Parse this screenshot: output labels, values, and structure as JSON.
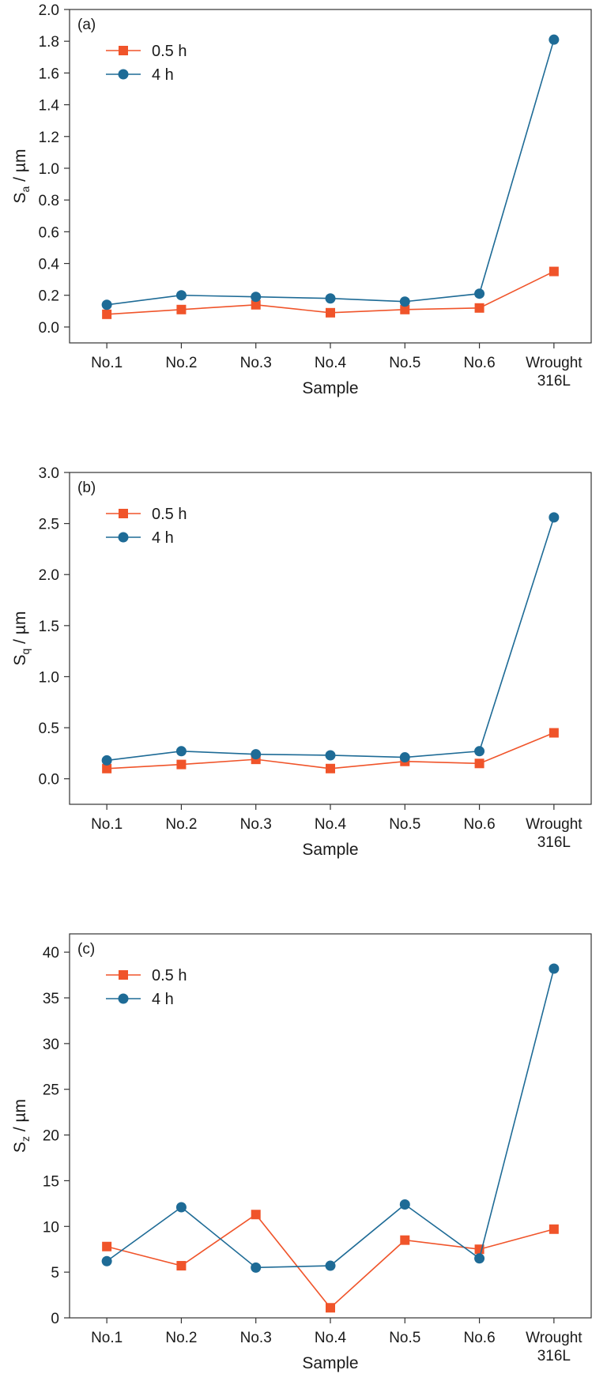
{
  "chart_data": [
    {
      "type": "line",
      "panel_label": "(a)",
      "categories": [
        "No.1",
        "No.2",
        "No.3",
        "No.4",
        "No.5",
        "No.6",
        "Wrought 316L"
      ],
      "xlabel": "Sample",
      "ylabel_main": "S",
      "ylabel_sub": "a",
      "ylabel_unit": " / µm",
      "ylim": [
        -0.1,
        2.0
      ],
      "yticks": [
        "0.0",
        "0.2",
        "0.4",
        "0.6",
        "0.8",
        "1.0",
        "1.2",
        "1.4",
        "1.6",
        "1.8",
        "2.0"
      ],
      "series": [
        {
          "name": "0.5 h",
          "marker": "square",
          "color": "#f0542a",
          "values": [
            0.08,
            0.11,
            0.14,
            0.09,
            0.11,
            0.12,
            0.35
          ]
        },
        {
          "name": "4 h",
          "marker": "circle",
          "color": "#1e6b96",
          "values": [
            0.14,
            0.2,
            0.19,
            0.18,
            0.16,
            0.21,
            1.81
          ]
        }
      ],
      "legend": "top-left"
    },
    {
      "type": "line",
      "panel_label": "(b)",
      "categories": [
        "No.1",
        "No.2",
        "No.3",
        "No.4",
        "No.5",
        "No.6",
        "Wrought 316L"
      ],
      "xlabel": "Sample",
      "ylabel_main": "S",
      "ylabel_sub": "q",
      "ylabel_unit": " / µm",
      "ylim": [
        -0.25,
        3.0
      ],
      "yticks": [
        "0.0",
        "0.5",
        "1.0",
        "1.5",
        "2.0",
        "2.5",
        "3.0"
      ],
      "series": [
        {
          "name": "0.5 h",
          "marker": "square",
          "color": "#f0542a",
          "values": [
            0.1,
            0.14,
            0.19,
            0.1,
            0.17,
            0.15,
            0.45
          ]
        },
        {
          "name": "4 h",
          "marker": "circle",
          "color": "#1e6b96",
          "values": [
            0.18,
            0.27,
            0.24,
            0.23,
            0.21,
            0.27,
            2.56
          ]
        }
      ],
      "legend": "top-left"
    },
    {
      "type": "line",
      "panel_label": "(c)",
      "categories": [
        "No.1",
        "No.2",
        "No.3",
        "No.4",
        "No.5",
        "No.6",
        "Wrought 316L"
      ],
      "xlabel": "Sample",
      "ylabel_main": "S",
      "ylabel_sub": "z",
      "ylabel_unit": " / µm",
      "ylim": [
        0,
        42
      ],
      "yticks": [
        "0",
        "5",
        "10",
        "15",
        "20",
        "25",
        "30",
        "35",
        "40"
      ],
      "series": [
        {
          "name": "0.5 h",
          "marker": "square",
          "color": "#f0542a",
          "values": [
            7.8,
            5.7,
            11.3,
            1.1,
            8.5,
            7.5,
            9.7
          ]
        },
        {
          "name": "4 h",
          "marker": "circle",
          "color": "#1e6b96",
          "values": [
            6.2,
            12.1,
            5.5,
            5.7,
            12.4,
            6.5,
            38.2
          ]
        }
      ],
      "legend": "top-left"
    }
  ]
}
